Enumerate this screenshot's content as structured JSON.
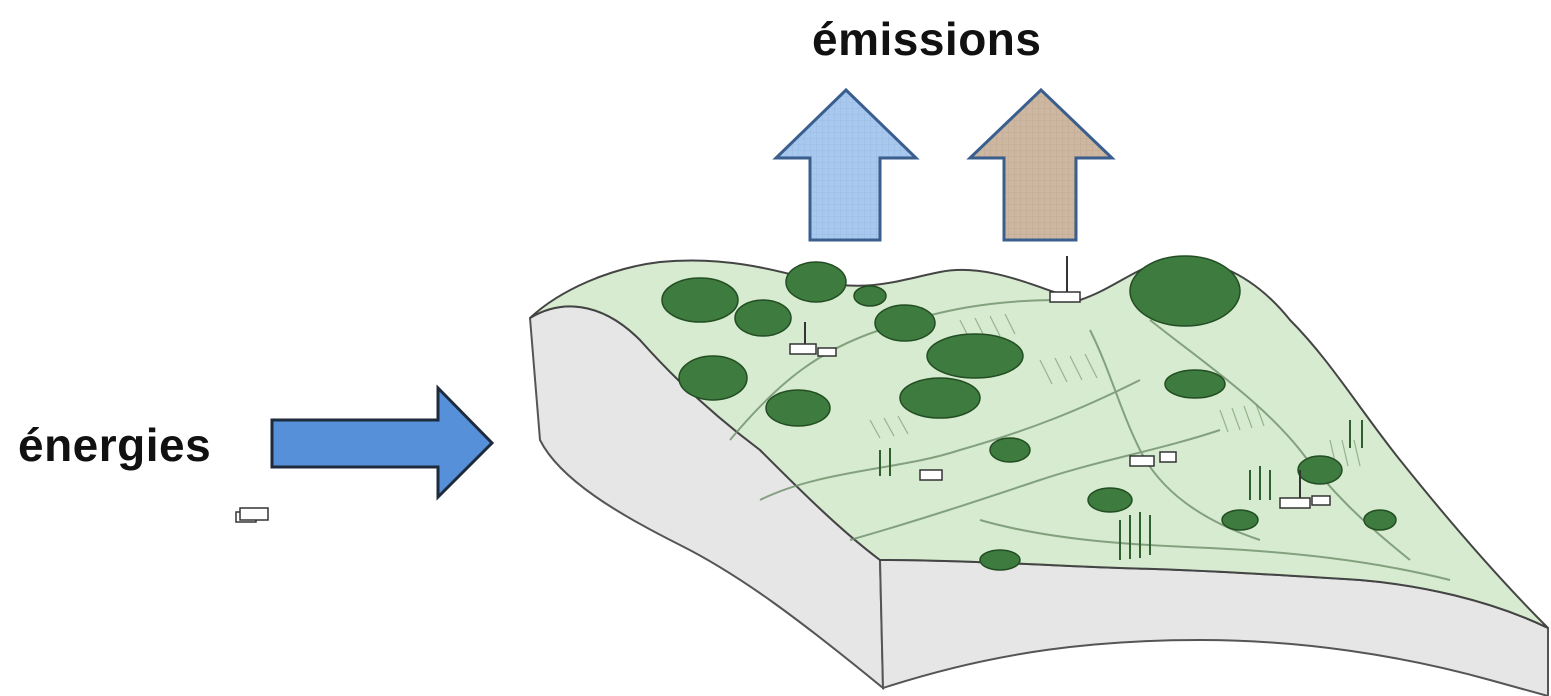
{
  "labels": {
    "emissions": "émissions",
    "energies": "énergies"
  },
  "colors": {
    "input_arrow": "#5590d8",
    "emission_arrow_blue": "#a9c8ee",
    "emission_arrow_brown": "#cdb7a0",
    "arrow_stroke": "#2f4f7a",
    "terrain_green": "#d6ebcf",
    "block_side": "#e4e4e4",
    "tree_green": "#3e7b3e"
  }
}
